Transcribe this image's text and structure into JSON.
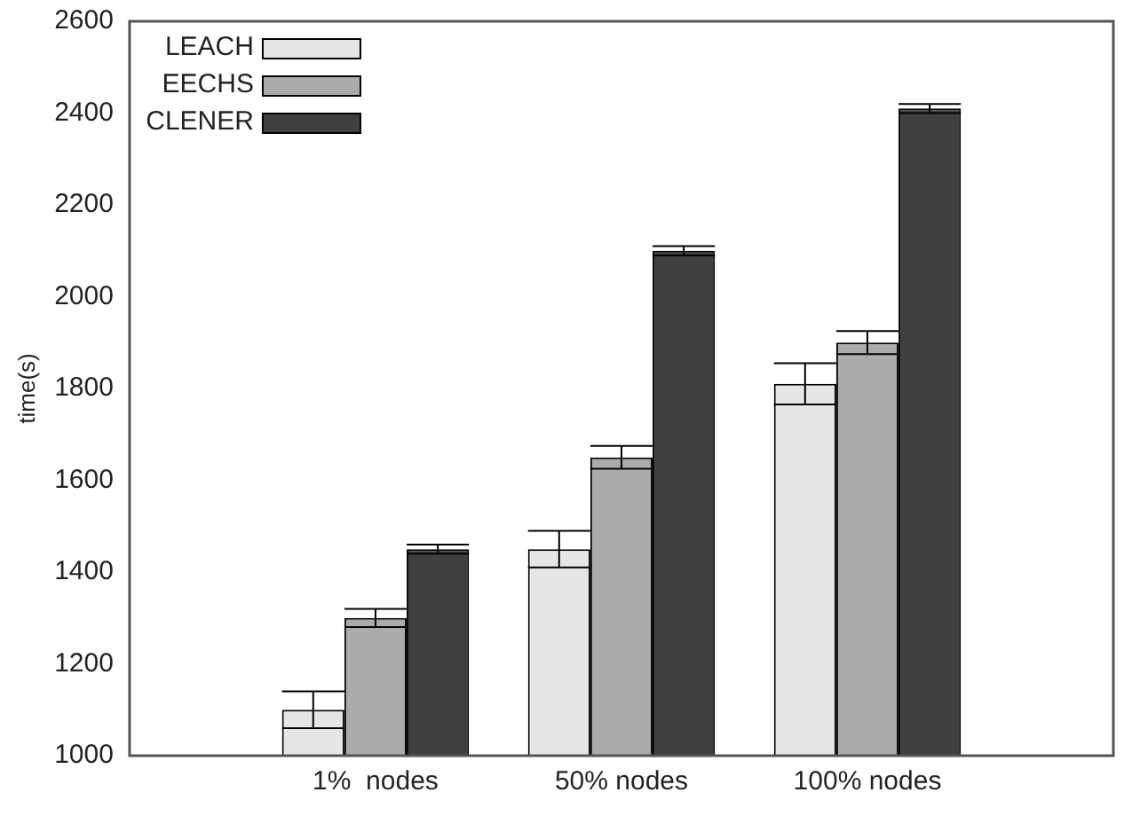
{
  "chart_data": {
    "type": "bar",
    "ylabel": "time(s)",
    "categories": [
      null,
      "1%  nodes",
      "50% nodes",
      "100% nodes",
      null
    ],
    "series": [
      {
        "name": "LEACH",
        "color": "#e6e6e6",
        "values": [
          null,
          1100,
          1450,
          1810,
          null
        ],
        "errors": [
          null,
          40,
          40,
          45,
          null
        ]
      },
      {
        "name": "EECHS",
        "color": "#ababab",
        "values": [
          null,
          1300,
          1650,
          1900,
          null
        ],
        "errors": [
          null,
          20,
          25,
          25,
          null
        ]
      },
      {
        "name": "CLENER",
        "color": "#404040",
        "values": [
          null,
          1450,
          2100,
          2410,
          null
        ],
        "errors": [
          null,
          10,
          10,
          10,
          null
        ]
      }
    ],
    "ylim": [
      1000,
      2600
    ],
    "yticks": [
      1000,
      1200,
      1400,
      1600,
      1800,
      2000,
      2200,
      2400,
      2600
    ],
    "grid": false,
    "legend": "top left"
  }
}
